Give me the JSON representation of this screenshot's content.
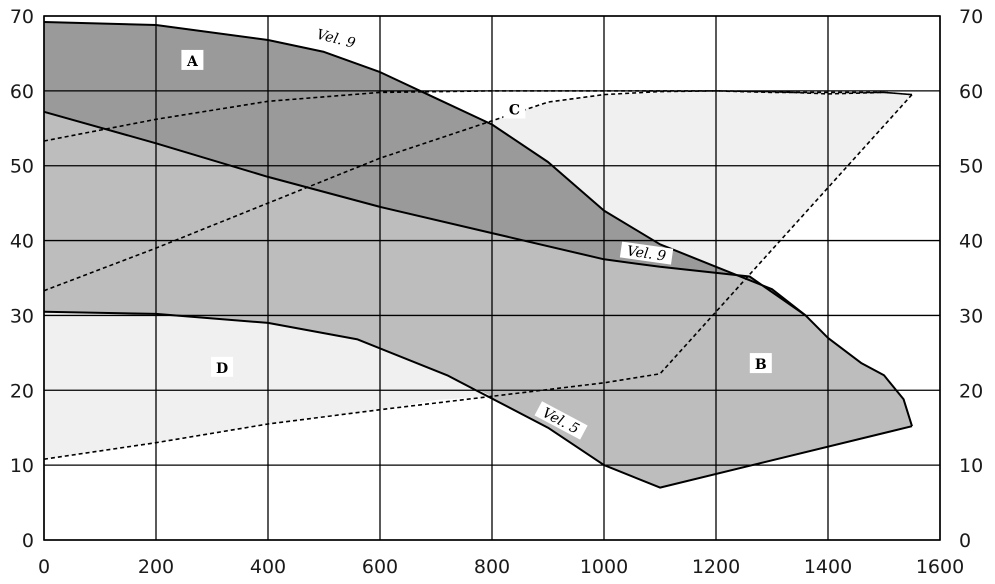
{
  "chart_data": {
    "type": "area",
    "title": "",
    "xlabel": "",
    "ylabel": "",
    "xlim": [
      0,
      1600
    ],
    "ylim": [
      0,
      70
    ],
    "x_ticks": [
      0,
      200,
      400,
      600,
      800,
      1000,
      1200,
      1400,
      1600
    ],
    "y_ticks": [
      0,
      10,
      20,
      30,
      40,
      50,
      60,
      70
    ],
    "y_ticks_right": true,
    "grid": true,
    "colors": {
      "region_A": "#9a9a9a",
      "region_B": "#bdbdbd",
      "region_C": "#f0f0f0",
      "region_D": "#f0f0f0",
      "lines": "#000000"
    },
    "regions": [
      {
        "label": "A",
        "label_pos": [
          265,
          64
        ],
        "points": [
          [
            0,
            69.2
          ],
          [
            200,
            68.8
          ],
          [
            400,
            66.8
          ],
          [
            500,
            65.2
          ],
          [
            600,
            62.5
          ],
          [
            700,
            59
          ],
          [
            800,
            55.5
          ],
          [
            900,
            50.5
          ],
          [
            1000,
            44
          ],
          [
            1100,
            39.5
          ],
          [
            1200,
            36.5
          ],
          [
            1300,
            33.5
          ],
          [
            1360,
            30
          ],
          [
            1260,
            35.2
          ],
          [
            1100,
            36.5
          ],
          [
            1000,
            37.5
          ],
          [
            800,
            41
          ],
          [
            600,
            44.5
          ],
          [
            400,
            48.5
          ],
          [
            200,
            53
          ],
          [
            0,
            57.2
          ]
        ]
      },
      {
        "label": "C",
        "label_pos": [
          840,
          57.5
        ],
        "points": [
          [
            680,
            60
          ],
          [
            1000,
            60
          ],
          [
            1200,
            60
          ],
          [
            1400,
            59.8
          ],
          [
            1500,
            59.8
          ],
          [
            1550,
            59.5
          ],
          [
            1100,
            22.2
          ],
          [
            1000,
            21.5
          ],
          [
            900,
            20.3
          ],
          [
            800,
            19.2
          ],
          [
            790,
            19.8
          ],
          [
            720,
            22
          ],
          [
            640,
            24.5
          ],
          [
            560,
            26.8
          ],
          [
            400,
            29
          ],
          [
            200,
            30.2
          ],
          [
            0,
            30.5
          ],
          [
            0,
            33.3
          ],
          [
            200,
            39
          ],
          [
            400,
            45
          ],
          [
            600,
            51
          ],
          [
            800,
            56
          ],
          [
            900,
            58.5
          ],
          [
            1000,
            59.5
          ],
          [
            1200,
            60
          ],
          [
            1300,
            59.8
          ],
          [
            1000,
            60
          ],
          [
            680,
            60
          ]
        ]
      },
      {
        "label": "B",
        "label_pos": [
          1280,
          23.5
        ],
        "points": [
          [
            1100,
            7
          ],
          [
            1550,
            15.2
          ],
          [
            1535,
            18.8
          ],
          [
            1500,
            22
          ],
          [
            1460,
            23.6
          ],
          [
            1400,
            27
          ],
          [
            1360,
            30
          ],
          [
            1300,
            33.5
          ],
          [
            1200,
            36.5
          ],
          [
            1100,
            39.5
          ],
          [
            1000,
            44
          ],
          [
            900,
            50.5
          ],
          [
            800,
            55.5
          ],
          [
            700,
            59
          ],
          [
            680,
            60
          ],
          [
            0,
            60
          ],
          [
            0,
            30.5
          ],
          [
            200,
            30.2
          ],
          [
            400,
            29
          ],
          [
            560,
            26.8
          ],
          [
            720,
            22
          ],
          [
            900,
            15
          ],
          [
            1000,
            10
          ],
          [
            1100,
            7
          ]
        ]
      },
      {
        "label": "D",
        "label_pos": [
          318,
          23
        ],
        "points": [
          [
            0,
            30.5
          ],
          [
            200,
            30.2
          ],
          [
            400,
            29
          ],
          [
            560,
            26.8
          ],
          [
            720,
            22
          ],
          [
            800,
            19.2
          ],
          [
            700,
            18.7
          ],
          [
            600,
            17.4
          ],
          [
            400,
            15.5
          ],
          [
            200,
            13
          ],
          [
            0,
            10.8
          ]
        ]
      }
    ],
    "curves": [
      {
        "name": "Vel. 9",
        "style": "solid",
        "label_pos": [
          520,
          66.5
        ],
        "label_rotate": 14,
        "points": [
          [
            0,
            69.2
          ],
          [
            200,
            68.8
          ],
          [
            400,
            66.8
          ],
          [
            500,
            65.2
          ],
          [
            600,
            62.5
          ],
          [
            700,
            59
          ],
          [
            800,
            55.5
          ],
          [
            900,
            50.5
          ],
          [
            1000,
            44
          ],
          [
            1100,
            39.5
          ],
          [
            1200,
            36.5
          ],
          [
            1300,
            33.5
          ],
          [
            1360,
            30
          ],
          [
            1400,
            27
          ],
          [
            1460,
            23.6
          ],
          [
            1500,
            22
          ],
          [
            1535,
            18.8
          ],
          [
            1550,
            15.2
          ]
        ]
      },
      {
        "name": "Vel. 9",
        "style": "solid",
        "label_pos": [
          1075,
          37.8
        ],
        "label_rotate": 8,
        "points": [
          [
            0,
            57.2
          ],
          [
            200,
            53
          ],
          [
            400,
            48.5
          ],
          [
            600,
            44.5
          ],
          [
            800,
            41
          ],
          [
            1000,
            37.5
          ],
          [
            1100,
            36.5
          ],
          [
            1260,
            35.2
          ],
          [
            1360,
            30
          ]
        ]
      },
      {
        "name": "Vel. 5",
        "style": "solid",
        "label_pos": [
          920,
          15.5
        ],
        "label_rotate": 28,
        "points": [
          [
            0,
            30.5
          ],
          [
            200,
            30.2
          ],
          [
            400,
            29
          ],
          [
            560,
            26.8
          ],
          [
            720,
            22
          ],
          [
            900,
            15
          ],
          [
            1000,
            10
          ],
          [
            1100,
            7
          ],
          [
            1550,
            15.2
          ]
        ]
      },
      {
        "name": "",
        "style": "dashed",
        "points": [
          [
            0,
            53.3
          ],
          [
            200,
            56.2
          ],
          [
            400,
            58.6
          ],
          [
            600,
            59.8
          ],
          [
            800,
            60
          ],
          [
            1000,
            60
          ],
          [
            1200,
            60
          ],
          [
            1300,
            59.8
          ],
          [
            1400,
            59.8
          ],
          [
            1500,
            59.8
          ],
          [
            1550,
            59.5
          ]
        ]
      },
      {
        "name": "",
        "style": "dashed",
        "points": [
          [
            0,
            33.3
          ],
          [
            200,
            39
          ],
          [
            400,
            45
          ],
          [
            600,
            51
          ],
          [
            800,
            56
          ],
          [
            900,
            58.5
          ],
          [
            1000,
            59.5
          ],
          [
            1100,
            59.9
          ],
          [
            1200,
            60
          ],
          [
            1300,
            59.9
          ],
          [
            1400,
            59.6
          ],
          [
            1500,
            59.8
          ],
          [
            1550,
            59.5
          ]
        ]
      },
      {
        "name": "",
        "style": "dashed",
        "points": [
          [
            0,
            10.8
          ],
          [
            200,
            13
          ],
          [
            400,
            15.5
          ],
          [
            600,
            17.4
          ],
          [
            800,
            19.2
          ],
          [
            1000,
            21
          ],
          [
            1100,
            22.2
          ],
          [
            1550,
            59.5
          ]
        ]
      }
    ]
  }
}
